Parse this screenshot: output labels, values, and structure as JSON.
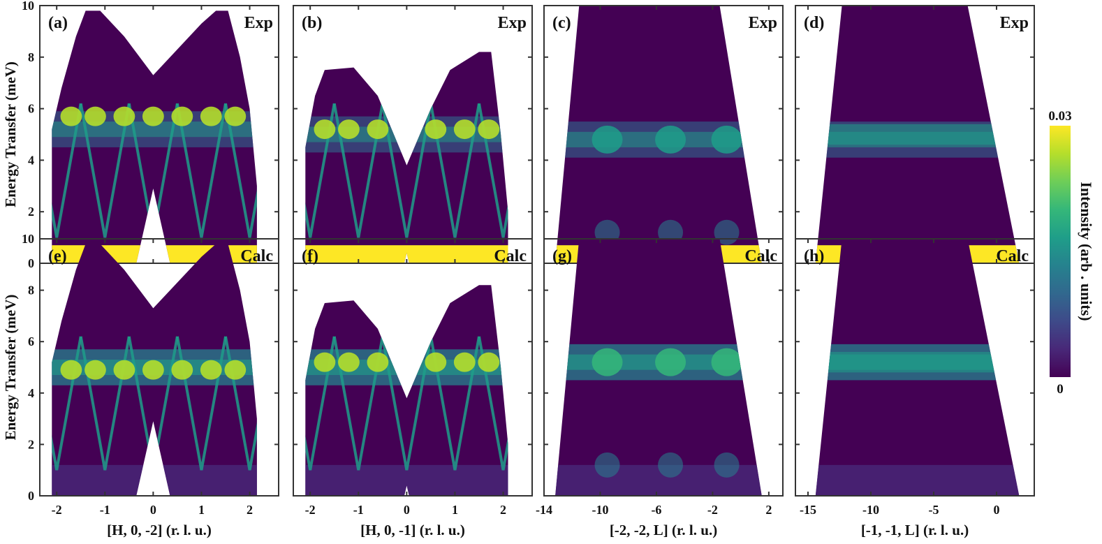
{
  "colors": {
    "bg": "#440154",
    "frame": "#333333",
    "viridis": [
      "#440154",
      "#482878",
      "#3e4a89",
      "#31688e",
      "#26828e",
      "#1f9e89",
      "#35b779",
      "#6ece58",
      "#b5de2b",
      "#fde725"
    ]
  },
  "colorbar": {
    "label": "Intensity (arb . units)",
    "max_label": "0.03",
    "min_label": "0",
    "range": [
      0,
      0.03
    ]
  },
  "chart_data": [
    {
      "type": "heatmap",
      "tag": "(a)",
      "kind": "Exp",
      "xlabel": "",
      "ylabel": "Energy Transfer (meV)",
      "xlim": [
        -2.35,
        2.6
      ],
      "ylim": [
        0,
        10
      ],
      "xticks": [
        -2,
        -1,
        0,
        1,
        2
      ],
      "xtick_labels": [
        "-2",
        "-1",
        "0",
        "1",
        "2"
      ],
      "yticks": [
        0,
        2,
        4,
        6,
        8,
        10
      ],
      "ytick_labels": [
        "0",
        "2",
        "4",
        "6",
        "8",
        "10"
      ],
      "mode": "H",
      "flatband": 5.2,
      "peak": 6.0,
      "top_edge": [
        [
          -2.1,
          5.2
        ],
        [
          -1.9,
          6.8
        ],
        [
          -1.6,
          8.8
        ],
        [
          -1.4,
          9.8
        ],
        [
          -1.1,
          9.8
        ],
        [
          -0.6,
          8.8
        ],
        [
          0,
          7.3
        ],
        [
          0.5,
          8.3
        ],
        [
          1.0,
          9.3
        ],
        [
          1.3,
          9.8
        ],
        [
          1.55,
          9.8
        ],
        [
          1.8,
          8.0
        ],
        [
          2.0,
          6.0
        ],
        [
          2.15,
          3.0
        ]
      ],
      "bottom_edge": [
        [
          -2.1,
          0
        ],
        [
          -0.35,
          0
        ],
        [
          0,
          2.9
        ],
        [
          0.35,
          0
        ],
        [
          2.15,
          0
        ]
      ]
    },
    {
      "type": "heatmap",
      "tag": "(b)",
      "kind": "Exp",
      "xlabel": "",
      "ylabel": "",
      "xlim": [
        -2.35,
        2.6
      ],
      "ylim": [
        0,
        10
      ],
      "xticks": [
        -2,
        -1,
        0,
        1,
        2
      ],
      "xtick_labels": [
        "-2",
        "-1",
        "0",
        "1",
        "2"
      ],
      "yticks": [
        0,
        2,
        4,
        6,
        8,
        10
      ],
      "ytick_labels": [],
      "mode": "H",
      "flatband": 5.0,
      "peak": 5.5,
      "top_edge": [
        [
          -2.1,
          4.5
        ],
        [
          -1.9,
          6.5
        ],
        [
          -1.7,
          7.5
        ],
        [
          -1.1,
          7.6
        ],
        [
          -0.6,
          6.5
        ],
        [
          0,
          3.8
        ],
        [
          0.5,
          6.0
        ],
        [
          0.9,
          7.5
        ],
        [
          1.5,
          8.2
        ],
        [
          1.75,
          8.2
        ],
        [
          1.95,
          5.0
        ],
        [
          2.1,
          2.0
        ]
      ],
      "bottom_edge": [
        [
          -2.1,
          0
        ],
        [
          -0.05,
          0
        ],
        [
          0,
          0.4
        ],
        [
          0.05,
          0
        ],
        [
          2.1,
          0
        ]
      ]
    },
    {
      "type": "heatmap",
      "tag": "(c)",
      "kind": "Exp",
      "xlabel": "",
      "ylabel": "",
      "xlim": [
        -14,
        3
      ],
      "ylim": [
        0,
        10
      ],
      "xticks": [
        -14,
        -10,
        -6,
        -2,
        2
      ],
      "xtick_labels": [
        "-14",
        "-10",
        "-6",
        "-2",
        "2"
      ],
      "yticks": [
        0,
        2,
        4,
        6,
        8,
        10
      ],
      "ytick_labels": [],
      "mode": "L",
      "flatband": 4.8,
      "peak": 4.8,
      "top_edge": [
        [
          -11.5,
          10
        ],
        [
          -1.5,
          10
        ]
      ],
      "bottom_edge": [
        [
          -13.2,
          0
        ],
        [
          1.5,
          0
        ]
      ],
      "left_line": [
        [
          -11.5,
          10
        ],
        [
          -13.2,
          0
        ]
      ],
      "right_line": [
        [
          -1.5,
          10
        ],
        [
          1.5,
          0
        ]
      ]
    },
    {
      "type": "heatmap",
      "tag": "(d)",
      "kind": "Exp",
      "xlabel": "",
      "ylabel": "",
      "xlim": [
        -16,
        3
      ],
      "ylim": [
        0,
        10
      ],
      "xticks": [
        -15,
        -10,
        -5,
        0
      ],
      "xtick_labels": [
        "-15",
        "-10",
        "-5",
        "0"
      ],
      "yticks": [
        0,
        2,
        4,
        6,
        8,
        10
      ],
      "ytick_labels": [],
      "mode": "L2",
      "flatband": 4.8,
      "peak": 5.0,
      "top_edge": [
        [
          -12.3,
          10
        ],
        [
          -2.3,
          10
        ]
      ],
      "bottom_edge": [
        [
          -14.4,
          0
        ],
        [
          1.8,
          0
        ]
      ],
      "left_line": [
        [
          -12.3,
          10
        ],
        [
          -14.4,
          0
        ]
      ],
      "right_line": [
        [
          -2.3,
          10
        ],
        [
          1.8,
          0
        ]
      ]
    },
    {
      "type": "heatmap",
      "tag": "(e)",
      "kind": "Calc",
      "xlabel": "[H, 0, -2] (r. l. u.)",
      "ylabel": "Energy Transfer (meV)",
      "xlim": [
        -2.35,
        2.6
      ],
      "ylim": [
        0,
        10
      ],
      "xticks": [
        -2,
        -1,
        0,
        1,
        2
      ],
      "xtick_labels": [
        "-2",
        "-1",
        "0",
        "1",
        "2"
      ],
      "yticks": [
        0,
        2,
        4,
        6,
        8,
        10
      ],
      "ytick_labels": [
        "0",
        "2",
        "4",
        "6",
        "8",
        "10"
      ],
      "mode": "H",
      "flatband": 5.0,
      "peak": 5.2,
      "top_edge": [
        [
          -2.1,
          5.2
        ],
        [
          -1.9,
          6.8
        ],
        [
          -1.6,
          8.8
        ],
        [
          -1.4,
          9.8
        ],
        [
          -1.1,
          9.8
        ],
        [
          -0.6,
          8.8
        ],
        [
          0,
          7.3
        ],
        [
          0.5,
          8.3
        ],
        [
          1.0,
          9.3
        ],
        [
          1.3,
          9.8
        ],
        [
          1.55,
          9.8
        ],
        [
          1.8,
          8.0
        ],
        [
          2.0,
          6.0
        ],
        [
          2.15,
          3.0
        ]
      ],
      "bottom_edge": [
        [
          -2.1,
          0
        ],
        [
          -0.35,
          0
        ],
        [
          0,
          2.9
        ],
        [
          0.35,
          0
        ],
        [
          2.15,
          0
        ]
      ]
    },
    {
      "type": "heatmap",
      "tag": "(f)",
      "kind": "Calc",
      "xlabel": "[H, 0, -1] (r. l. u.)",
      "ylabel": "",
      "xlim": [
        -2.35,
        2.6
      ],
      "ylim": [
        0,
        10
      ],
      "xticks": [
        -2,
        -1,
        0,
        1,
        2
      ],
      "xtick_labels": [
        "-2",
        "-1",
        "0",
        "1",
        "2"
      ],
      "yticks": [
        0,
        2,
        4,
        6,
        8,
        10
      ],
      "ytick_labels": [],
      "mode": "H",
      "flatband": 5.0,
      "peak": 5.5,
      "top_edge": [
        [
          -2.1,
          4.5
        ],
        [
          -1.9,
          6.5
        ],
        [
          -1.7,
          7.5
        ],
        [
          -1.1,
          7.6
        ],
        [
          -0.6,
          6.5
        ],
        [
          0,
          3.8
        ],
        [
          0.5,
          6.0
        ],
        [
          0.9,
          7.5
        ],
        [
          1.5,
          8.2
        ],
        [
          1.75,
          8.2
        ],
        [
          1.95,
          5.0
        ],
        [
          2.1,
          2.0
        ]
      ],
      "bottom_edge": [
        [
          -2.1,
          0
        ],
        [
          -0.05,
          0
        ],
        [
          0,
          0.4
        ],
        [
          0.05,
          0
        ],
        [
          2.1,
          0
        ]
      ]
    },
    {
      "type": "heatmap",
      "tag": "(g)",
      "kind": "Calc",
      "xlabel": "[-2, -2, L] (r. l. u.)",
      "ylabel": "",
      "xlim": [
        -14,
        3
      ],
      "ylim": [
        0,
        10
      ],
      "xticks": [
        -14,
        -10,
        -6,
        -2,
        2
      ],
      "xtick_labels": [
        "-14",
        "-10",
        "-6",
        "-2",
        "2"
      ],
      "yticks": [
        0,
        2,
        4,
        6,
        8,
        10
      ],
      "ytick_labels": [],
      "mode": "Lc",
      "flatband": 5.2,
      "peak": 5.2,
      "top_edge": [
        [
          -11.5,
          10
        ],
        [
          -1.5,
          10
        ]
      ],
      "bottom_edge": [
        [
          -13.2,
          0
        ],
        [
          1.5,
          0
        ]
      ],
      "left_line": [
        [
          -11.5,
          10
        ],
        [
          -13.2,
          0
        ]
      ],
      "right_line": [
        [
          -1.5,
          10
        ],
        [
          1.5,
          0
        ]
      ]
    },
    {
      "type": "heatmap",
      "tag": "(h)",
      "kind": "Calc",
      "xlabel": "[-1, -1, L] (r. l. u.)",
      "ylabel": "",
      "xlim": [
        -16,
        3
      ],
      "ylim": [
        0,
        10
      ],
      "xticks": [
        -15,
        -10,
        -5,
        0
      ],
      "xtick_labels": [
        "-15",
        "-10",
        "-5",
        "0"
      ],
      "yticks": [
        0,
        2,
        4,
        6,
        8,
        10
      ],
      "ytick_labels": [],
      "mode": "L2c",
      "flatband": 5.2,
      "peak": 5.2,
      "top_edge": [
        [
          -12.3,
          10
        ],
        [
          -2.3,
          10
        ]
      ],
      "bottom_edge": [
        [
          -14.4,
          0
        ],
        [
          1.8,
          0
        ]
      ],
      "left_line": [
        [
          -12.3,
          10
        ],
        [
          -14.4,
          0
        ]
      ],
      "right_line": [
        [
          -2.3,
          10
        ],
        [
          1.8,
          0
        ]
      ]
    }
  ]
}
